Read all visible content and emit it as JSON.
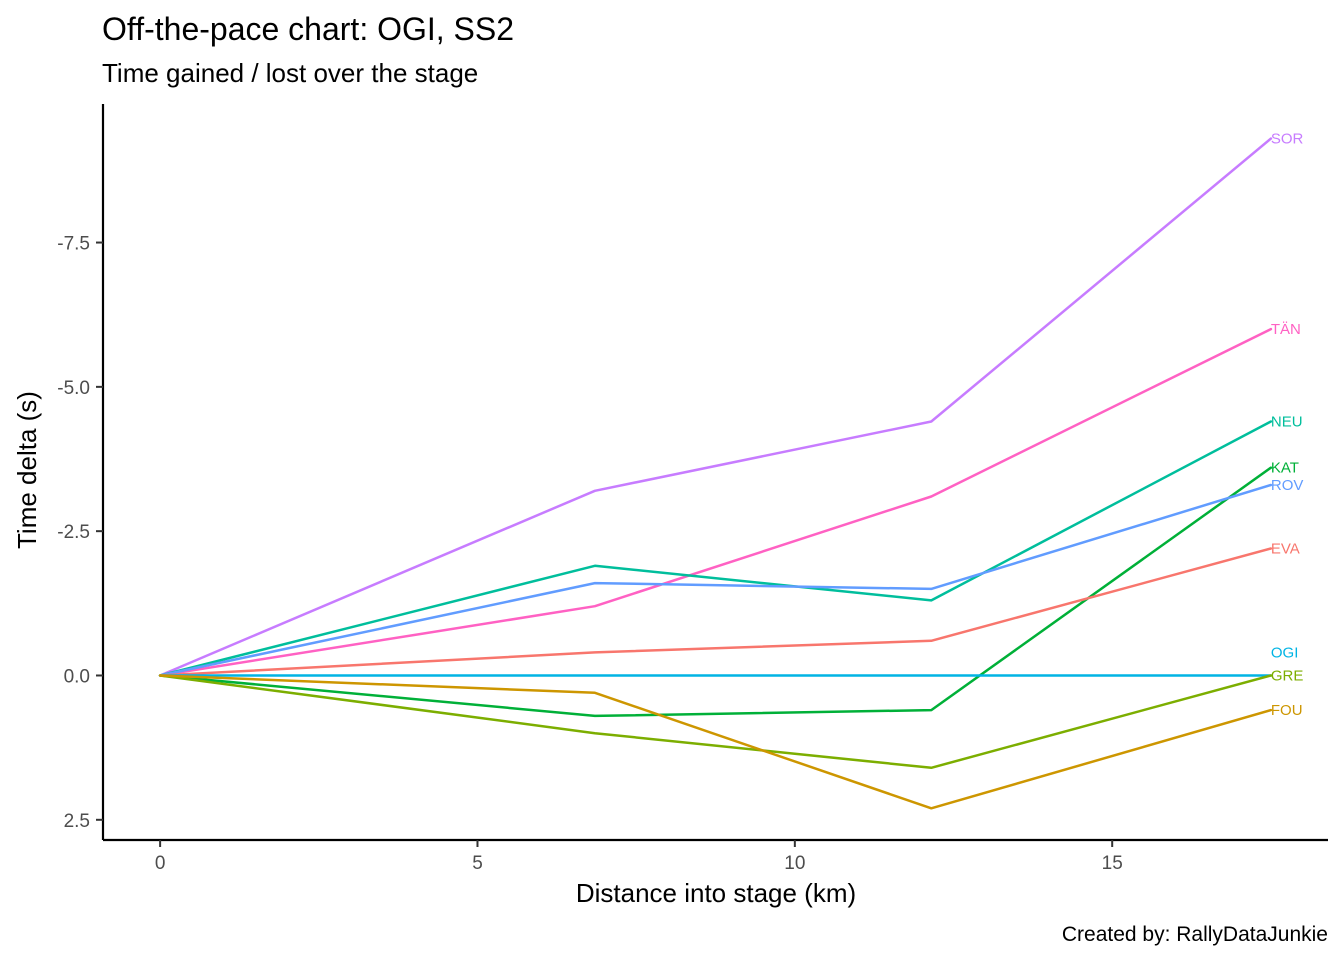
{
  "chart_data": {
    "type": "line",
    "title": "Off-the-pace chart: OGI, SS2",
    "subtitle": "Time gained / lost over the stage",
    "xlabel": "Distance into stage (km)",
    "ylabel": "Time delta (s)",
    "caption": "Created by: RallyDataJunkie",
    "x": [
      0,
      6.85,
      12.15,
      17.5
    ],
    "xlim": [
      -0.9,
      18.4
    ],
    "ylim": [
      2.85,
      -9.9
    ],
    "y_reversed": true,
    "x_ticks": [
      0,
      5,
      10,
      15
    ],
    "x_tick_labels": [
      "0",
      "5",
      "10",
      "15"
    ],
    "y_ticks": [
      2.5,
      0,
      -2.5,
      -5,
      -7.5
    ],
    "y_tick_labels": [
      "2.5",
      "0.0",
      "-2.5",
      "-5.0",
      "-7.5"
    ],
    "grid": false,
    "legend": "none (end-of-line labels)",
    "series": [
      {
        "name": "SOR",
        "color": "#C77CFF",
        "values": [
          0,
          -3.2,
          -4.4,
          -9.3
        ]
      },
      {
        "name": "TÄN",
        "color": "#FF61C3",
        "values": [
          0,
          -1.2,
          -3.1,
          -6.0
        ]
      },
      {
        "name": "NEU",
        "color": "#00BE9C",
        "values": [
          0,
          -1.9,
          -1.3,
          -4.4
        ]
      },
      {
        "name": "KAT",
        "color": "#00B038",
        "values": [
          0,
          0.7,
          0.6,
          -3.6
        ]
      },
      {
        "name": "ROV",
        "color": "#619CFF",
        "values": [
          0,
          -1.6,
          -1.5,
          -3.3
        ]
      },
      {
        "name": "EVA",
        "color": "#F8766D",
        "values": [
          0,
          -0.4,
          -0.6,
          -2.2
        ]
      },
      {
        "name": "OGI",
        "color": "#00B4E4",
        "values": [
          0,
          0,
          0,
          0
        ]
      },
      {
        "name": "GRE",
        "color": "#7CAE00",
        "values": [
          0,
          1.0,
          1.6,
          0
        ]
      },
      {
        "name": "FOU",
        "color": "#CD9600",
        "values": [
          0,
          0.3,
          2.3,
          0.6
        ]
      }
    ]
  }
}
